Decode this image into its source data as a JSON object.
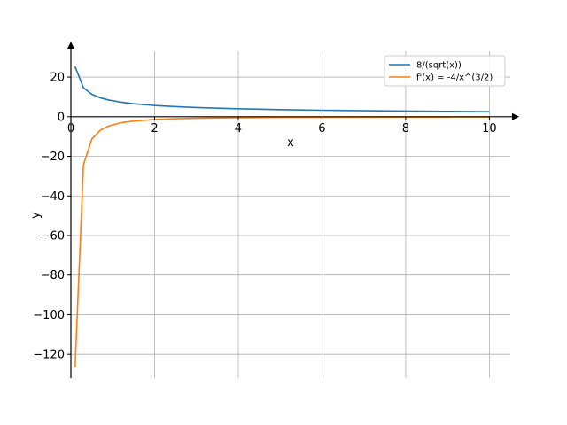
{
  "chart_data": {
    "type": "line",
    "xlabel": "x",
    "ylabel": "y",
    "xlim": [
      0,
      10.5
    ],
    "ylim": [
      -132,
      33
    ],
    "x_ticks": [
      0,
      2,
      4,
      6,
      8,
      10
    ],
    "y_ticks": [
      20,
      0,
      -20,
      -40,
      -60,
      -80,
      -100,
      -120
    ],
    "x_tick_labels": [
      "0",
      "2",
      "4",
      "6",
      "8",
      "10"
    ],
    "y_tick_labels": [
      "20",
      "0",
      "−20",
      "−40",
      "−60",
      "−80",
      "−100",
      "−120"
    ],
    "grid": true,
    "legend_position": "top-right",
    "series": [
      {
        "name": "8/(sqrt(x))",
        "color": "#1f77b4",
        "x": [
          0.1,
          0.3,
          0.5,
          0.7,
          0.9,
          1.2,
          1.5,
          2,
          2.5,
          3,
          4,
          5,
          6,
          7,
          8,
          9,
          10
        ],
        "y": [
          25.3,
          14.6,
          11.31,
          9.56,
          8.43,
          7.3,
          6.53,
          5.66,
          5.06,
          4.62,
          4.0,
          3.58,
          3.27,
          3.02,
          2.83,
          2.67,
          2.53
        ]
      },
      {
        "name": "f'(x) = -4/x^(3/2)",
        "color": "#ff7f0e",
        "x": [
          0.1,
          0.3,
          0.5,
          0.7,
          0.9,
          1.2,
          1.5,
          2,
          2.5,
          3,
          4,
          5,
          6,
          7,
          8,
          9,
          10
        ],
        "y": [
          -126.5,
          -24.3,
          -11.31,
          -6.83,
          -4.68,
          -3.04,
          -2.18,
          -1.41,
          -1.01,
          -0.77,
          -0.5,
          -0.36,
          -0.27,
          -0.22,
          -0.18,
          -0.15,
          -0.13
        ]
      }
    ]
  }
}
